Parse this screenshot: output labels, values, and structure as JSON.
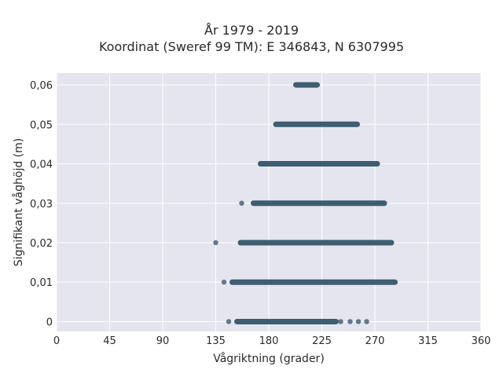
{
  "chart_data": {
    "type": "scatter",
    "title": "År 1979 - 2019",
    "subtitle": "Koordinat (Sweref 99 TM): E 346843, N 6307995",
    "xlabel": "Vågriktning (grader)",
    "ylabel": "Signifikant våghöjd (m)",
    "xlim": [
      0,
      360
    ],
    "ylim": [
      -0.0025,
      0.063
    ],
    "xticks": [
      0,
      45,
      90,
      135,
      180,
      225,
      270,
      315,
      360
    ],
    "xtick_labels": [
      "0",
      "45",
      "90",
      "135",
      "180",
      "225",
      "270",
      "315",
      "360"
    ],
    "yticks": [
      0,
      0.01,
      0.02,
      0.03,
      0.04,
      0.05,
      0.06
    ],
    "ytick_labels": [
      "0",
      "0,01",
      "0,02",
      "0,03",
      "0,04",
      "0,05",
      "0,06"
    ],
    "grid": true,
    "marker_color": "#2f5267",
    "background": "#e5e5ef",
    "bands": [
      {
        "y": 0.06,
        "from": 203,
        "to": 221
      },
      {
        "y": 0.05,
        "from": 186,
        "to": 255
      },
      {
        "y": 0.04,
        "from": 173,
        "to": 272
      },
      {
        "y": 0.03,
        "from": 167,
        "to": 278
      },
      {
        "y": 0.02,
        "from": 156,
        "to": 284
      },
      {
        "y": 0.01,
        "from": 149,
        "to": 287
      },
      {
        "y": 0,
        "from": 153,
        "to": 237
      }
    ],
    "points": [
      {
        "x": 135,
        "y": 0.02
      },
      {
        "x": 142,
        "y": 0.01
      },
      {
        "x": 157,
        "y": 0.03
      },
      {
        "x": 146,
        "y": 0
      },
      {
        "x": 241,
        "y": 0
      },
      {
        "x": 249,
        "y": 0
      },
      {
        "x": 256,
        "y": 0
      },
      {
        "x": 263,
        "y": 0
      }
    ]
  }
}
